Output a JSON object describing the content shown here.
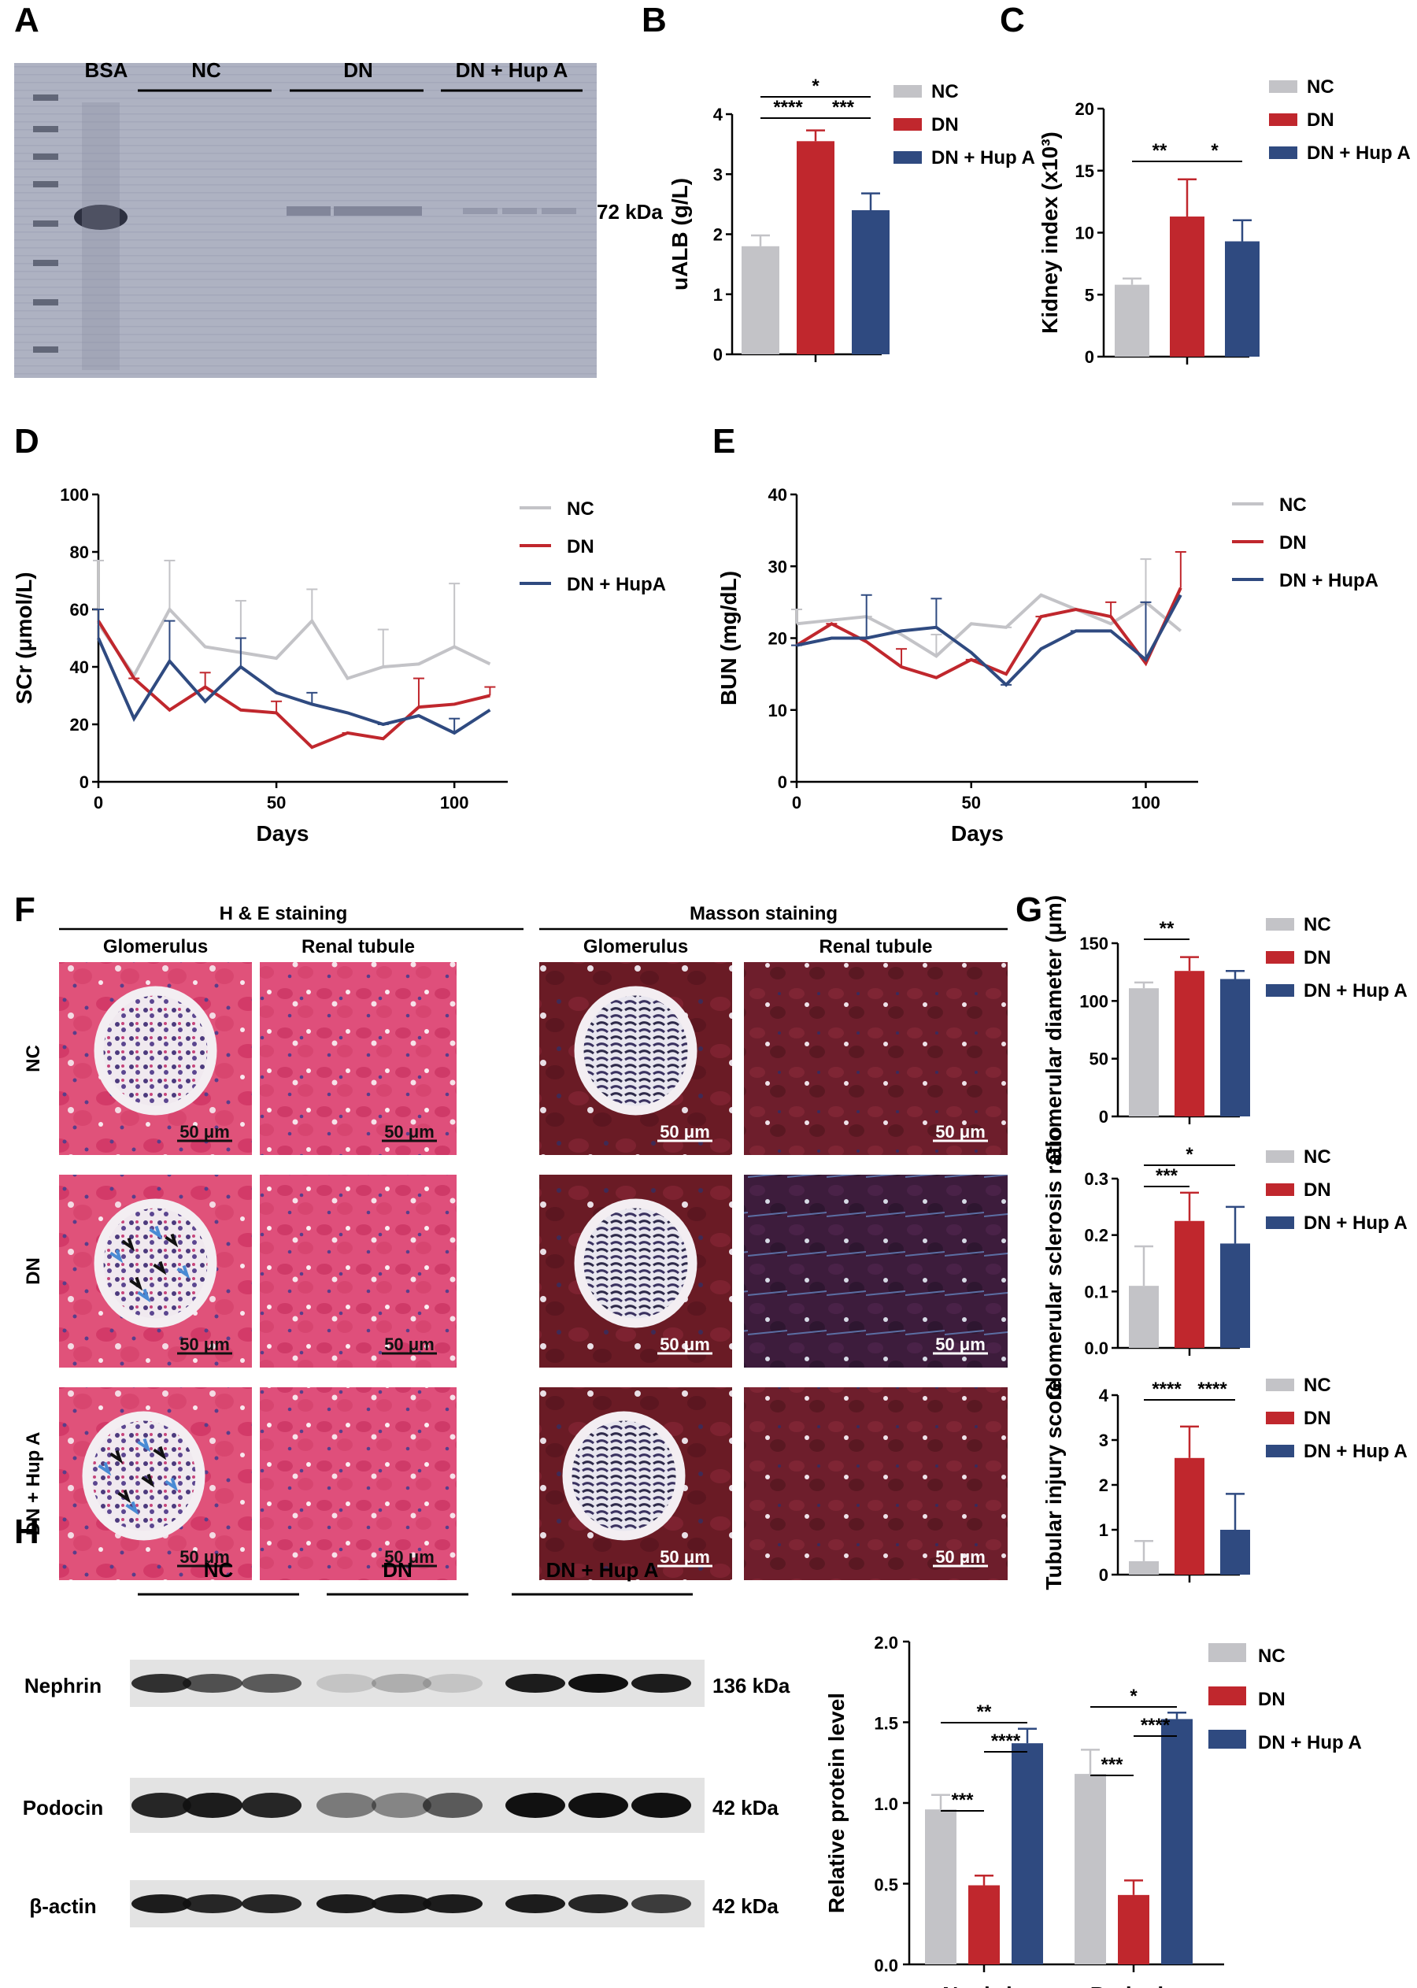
{
  "colors": {
    "NC": "#c3c3c7",
    "DN": "#c0272d",
    "DNH": "#2f4a80"
  },
  "panelA": {
    "letter": "A",
    "lanes": [
      "BSA",
      "NC",
      "DN",
      "DN + Hup A"
    ],
    "marker": "72 kDa"
  },
  "panelB": {
    "letter": "B",
    "chart_data": {
      "type": "bar",
      "categories": [
        "NC",
        "DN",
        "DN + Hup A"
      ],
      "values": [
        1.8,
        3.55,
        2.4
      ],
      "errors": [
        0.18,
        0.18,
        0.28
      ],
      "ylabel": "uALB (g/L)",
      "ylim": [
        0,
        4
      ],
      "yticks": [
        "0",
        "1",
        "2",
        "3",
        "4"
      ],
      "legend": [
        "NC",
        "DN",
        "DN + Hup A"
      ],
      "sig": [
        "*",
        "****",
        "***"
      ]
    }
  },
  "panelC": {
    "letter": "C",
    "chart_data": {
      "type": "bar",
      "categories": [
        "NC",
        "DN",
        "DN + Hup A"
      ],
      "values": [
        5.8,
        11.3,
        9.3
      ],
      "errors": [
        0.5,
        3.0,
        1.7
      ],
      "ylabel": "Kidney index (x10³)",
      "ylim": [
        0,
        20
      ],
      "yticks": [
        "0",
        "5",
        "10",
        "15",
        "20"
      ],
      "legend": [
        "NC",
        "DN",
        "DN + Hup A"
      ],
      "sig": [
        "**",
        "*"
      ]
    }
  },
  "panelD": {
    "letter": "D",
    "chart_data": {
      "type": "line",
      "ylabel": "SCr (μmol/L)",
      "xlabel": "Days",
      "ylim": [
        0,
        100
      ],
      "xlim": [
        0,
        115
      ],
      "yticks": [
        "0",
        "20",
        "40",
        "60",
        "80",
        "100"
      ],
      "xticks": [
        "0",
        "50",
        "100"
      ],
      "x": [
        0,
        10,
        20,
        30,
        40,
        50,
        60,
        70,
        80,
        90,
        100,
        110
      ],
      "series": [
        {
          "name": "NC",
          "values": [
            55,
            37,
            60,
            47,
            45,
            43,
            56,
            36,
            40,
            41,
            47,
            41
          ]
        },
        {
          "name": "DN",
          "values": [
            56,
            36,
            25,
            33,
            25,
            24,
            12,
            17,
            15,
            26,
            27,
            30
          ]
        },
        {
          "name": "DN + HupA",
          "values": [
            50,
            22,
            42,
            28,
            40,
            31,
            27,
            24,
            20,
            23,
            17,
            25
          ]
        }
      ]
    }
  },
  "panelE": {
    "letter": "E",
    "chart_data": {
      "type": "line",
      "ylabel": "BUN (mg/dL)",
      "xlabel": "Days",
      "ylim": [
        0,
        40
      ],
      "xlim": [
        0,
        115
      ],
      "yticks": [
        "0",
        "10",
        "20",
        "30",
        "40"
      ],
      "xticks": [
        "0",
        "50",
        "100"
      ],
      "x": [
        0,
        10,
        20,
        30,
        40,
        50,
        60,
        70,
        80,
        90,
        100,
        110
      ],
      "series": [
        {
          "name": "NC",
          "values": [
            22,
            22.5,
            23,
            20.5,
            17.5,
            22,
            21.5,
            26,
            24,
            22,
            25,
            21
          ]
        },
        {
          "name": "DN",
          "values": [
            19,
            22,
            19.5,
            16,
            14.5,
            17,
            15,
            23,
            24,
            23,
            16.5,
            27
          ]
        },
        {
          "name": "DN + HupA",
          "values": [
            19,
            20,
            20,
            21,
            21.5,
            18,
            13.5,
            18.5,
            21,
            21,
            17,
            26
          ]
        }
      ]
    }
  },
  "panelF": {
    "letter": "F",
    "groups": [
      "H & E staining",
      "Masson staining"
    ],
    "cols": [
      "Glomerulus",
      "Renal tubule",
      "Glomerulus",
      "Renal tubule"
    ],
    "rows": [
      "NC",
      "DN",
      "DN + Hup A"
    ],
    "scalebar": "50 μm"
  },
  "panelG": {
    "letter": "G",
    "charts": [
      {
        "type": "bar",
        "categories": [
          "NC",
          "DN",
          "DN + Hup A"
        ],
        "values": [
          111,
          126,
          119
        ],
        "errors": [
          5,
          12,
          7
        ],
        "ylabel": "Glomerular diameter (μm)",
        "ylim": [
          0,
          150
        ],
        "yticks": [
          "0",
          "50",
          "100",
          "150"
        ],
        "legend": [
          "NC",
          "DN",
          "DN + Hup A"
        ],
        "sig": [
          "**"
        ]
      },
      {
        "type": "bar",
        "categories": [
          "NC",
          "DN",
          "DN + Hup A"
        ],
        "values": [
          0.11,
          0.225,
          0.185
        ],
        "errors": [
          0.07,
          0.05,
          0.065
        ],
        "ylabel": "Glomerular sclerosis ratio",
        "ylim": [
          0,
          0.3
        ],
        "yticks": [
          "0.0",
          "0.1",
          "0.2",
          "0.3"
        ],
        "legend": [
          "NC",
          "DN",
          "DN + Hup A"
        ],
        "sig": [
          "*",
          "***"
        ]
      },
      {
        "type": "bar",
        "categories": [
          "NC",
          "DN",
          "DN + Hup A"
        ],
        "values": [
          0.3,
          2.6,
          1.0
        ],
        "errors": [
          0.45,
          0.7,
          0.8
        ],
        "ylabel": "Tubular injury score",
        "ylim": [
          0,
          4
        ],
        "yticks": [
          "0",
          "1",
          "2",
          "3",
          "4"
        ],
        "legend": [
          "NC",
          "DN",
          "DN + Hup A"
        ],
        "sig": [
          "****",
          "****"
        ]
      }
    ]
  },
  "panelH": {
    "letter": "H",
    "groups": [
      "NC",
      "DN",
      "DN + Hup A"
    ],
    "blots": [
      {
        "name": "Nephrin",
        "size": "136 kDa"
      },
      {
        "name": "Podocin",
        "size": "42 kDa"
      },
      {
        "name": "β-actin",
        "size": "42 kDa"
      }
    ],
    "chart_data": {
      "type": "bar",
      "categories": [
        "Nephrin",
        "Podocin"
      ],
      "series": [
        {
          "name": "NC",
          "values": [
            0.96,
            1.18
          ],
          "errors": [
            0.09,
            0.15
          ]
        },
        {
          "name": "DN",
          "values": [
            0.49,
            0.43
          ],
          "errors": [
            0.06,
            0.09
          ]
        },
        {
          "name": "DN + Hup A",
          "values": [
            1.37,
            1.52
          ],
          "errors": [
            0.09,
            0.04
          ]
        }
      ],
      "ylabel": "Relative protein level",
      "ylim": [
        0,
        2.0
      ],
      "yticks": [
        "0.0",
        "0.5",
        "1.0",
        "1.5",
        "2.0"
      ],
      "sig": [
        "**",
        "****",
        "***",
        "*",
        "****",
        "***"
      ]
    }
  }
}
